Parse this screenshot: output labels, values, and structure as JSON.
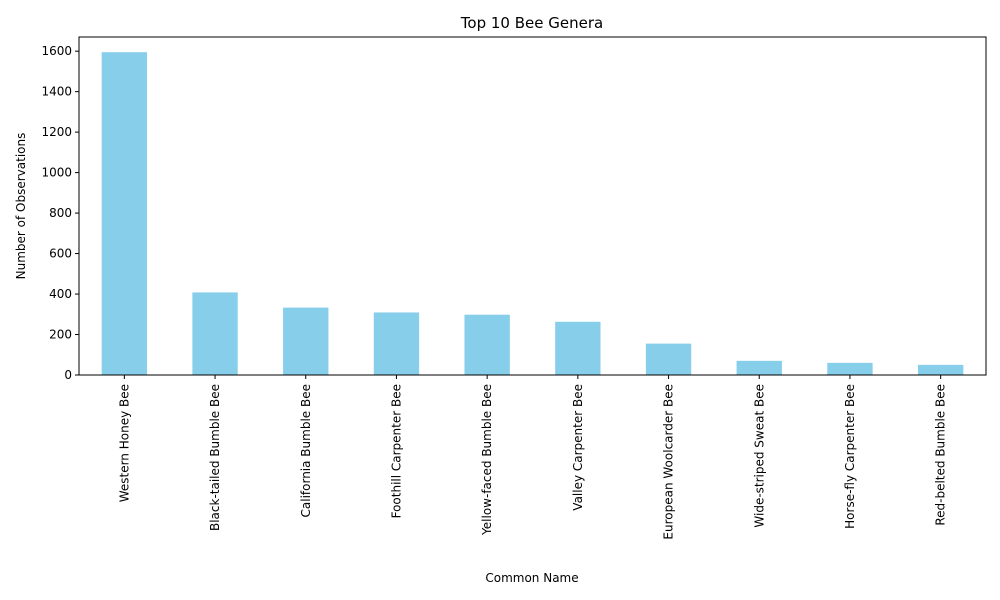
{
  "chart_data": {
    "type": "bar",
    "title": "Top 10 Bee Genera",
    "xlabel": "Common Name",
    "ylabel": "Number of Observations",
    "categories": [
      "Western Honey Bee",
      "Black-tailed Bumble Bee",
      "California Bumble Bee",
      "Foothill Carpenter Bee",
      "Yellow-faced Bumble Bee",
      "Valley Carpenter Bee",
      "European Woolcarder Bee",
      "Wide-striped Sweat Bee",
      "Horse-fly Carpenter Bee",
      "Red-belted Bumble Bee"
    ],
    "values": [
      1595,
      408,
      333,
      309,
      298,
      263,
      155,
      70,
      60,
      50
    ],
    "ylim": [
      0,
      1670
    ],
    "yticks": [
      0,
      200,
      400,
      600,
      800,
      1000,
      1200,
      1400,
      1600
    ],
    "grid": false,
    "bar_color": "#87ceeb"
  }
}
